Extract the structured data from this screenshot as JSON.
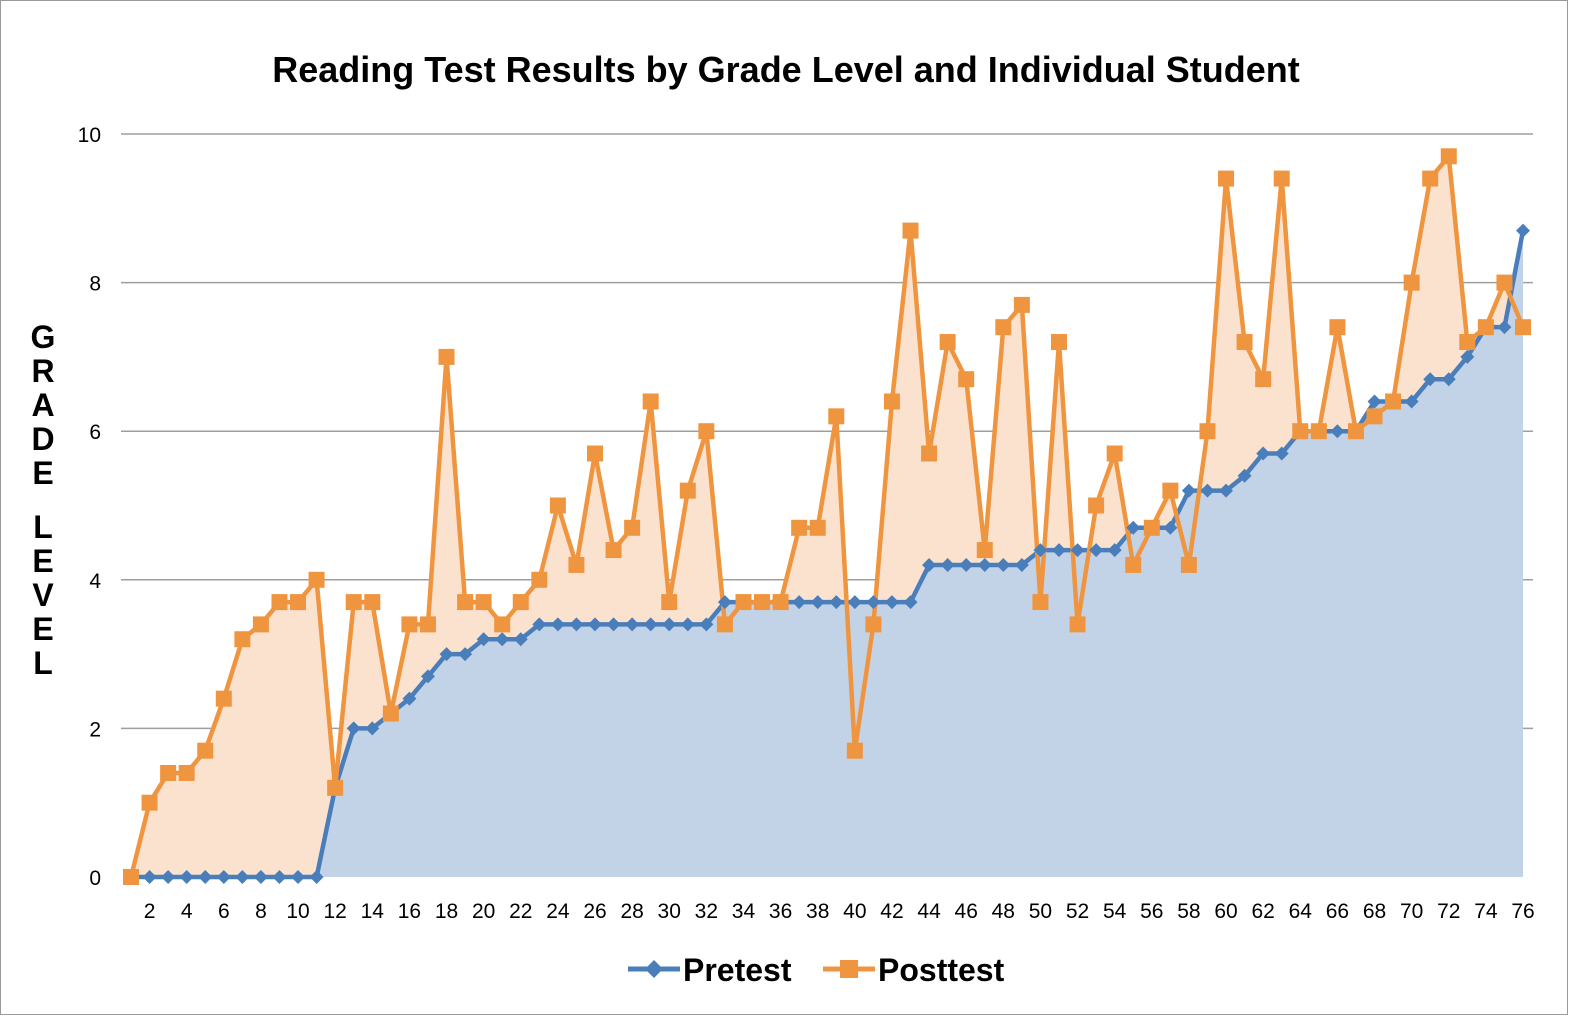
{
  "chart_data": {
    "type": "line",
    "title": "Reading Test Results by Grade Level and Individual Student",
    "xlabel": "",
    "ylabel": "GRADE LEVEL",
    "ylim": [
      0,
      10
    ],
    "yticks": [
      0,
      2,
      4,
      6,
      8,
      10
    ],
    "xlim": [
      1,
      76
    ],
    "xticks": [
      2,
      4,
      6,
      8,
      10,
      12,
      14,
      16,
      18,
      20,
      22,
      24,
      26,
      28,
      30,
      32,
      34,
      36,
      38,
      40,
      42,
      44,
      46,
      48,
      50,
      52,
      54,
      56,
      58,
      60,
      62,
      64,
      66,
      68,
      70,
      72,
      74,
      76
    ],
    "grid": true,
    "legend": "bottom",
    "x": [
      1,
      2,
      3,
      4,
      5,
      6,
      7,
      8,
      9,
      10,
      11,
      12,
      13,
      14,
      15,
      16,
      17,
      18,
      19,
      20,
      21,
      22,
      23,
      24,
      25,
      26,
      27,
      28,
      29,
      30,
      31,
      32,
      33,
      34,
      35,
      36,
      37,
      38,
      39,
      40,
      41,
      42,
      43,
      44,
      45,
      46,
      47,
      48,
      49,
      50,
      51,
      52,
      53,
      54,
      55,
      56,
      57,
      58,
      59,
      60,
      61,
      62,
      63,
      64,
      65,
      66,
      67,
      68,
      69,
      70,
      71,
      72,
      73,
      74,
      75,
      76
    ],
    "series": [
      {
        "name": "Pretest",
        "color": "#4a7ebb",
        "fill": "#c2d3e8",
        "marker": "diamond",
        "values": [
          0,
          0,
          0,
          0,
          0,
          0,
          0,
          0,
          0,
          0,
          0,
          1.2,
          2,
          2,
          2.2,
          2.4,
          2.7,
          3,
          3,
          3.2,
          3.2,
          3.2,
          3.4,
          3.4,
          3.4,
          3.4,
          3.4,
          3.4,
          3.4,
          3.4,
          3.4,
          3.4,
          3.7,
          3.7,
          3.7,
          3.7,
          3.7,
          3.7,
          3.7,
          3.7,
          3.7,
          3.7,
          3.7,
          4.2,
          4.2,
          4.2,
          4.2,
          4.2,
          4.2,
          4.4,
          4.4,
          4.4,
          4.4,
          4.4,
          4.7,
          4.7,
          4.7,
          5.2,
          5.2,
          5.2,
          5.4,
          5.7,
          5.7,
          6,
          6,
          6,
          6,
          6.4,
          6.4,
          6.4,
          6.7,
          6.7,
          7,
          7.4,
          7.4,
          8.7
        ]
      },
      {
        "name": "Posttest",
        "color": "#f0953f",
        "fill": "#fbe2cf",
        "marker": "square",
        "values": [
          0,
          1,
          1.4,
          1.4,
          1.7,
          2.4,
          3.2,
          3.4,
          3.7,
          3.7,
          4,
          1.2,
          3.7,
          3.7,
          2.2,
          3.4,
          3.4,
          7,
          3.7,
          3.7,
          3.4,
          3.7,
          4,
          5,
          4.2,
          5.7,
          4.4,
          4.7,
          6.4,
          3.7,
          5.2,
          6,
          3.4,
          3.7,
          3.7,
          3.7,
          4.7,
          4.7,
          6.2,
          1.7,
          3.4,
          6.4,
          8.7,
          5.7,
          7.2,
          6.7,
          4.4,
          7.4,
          7.7,
          3.7,
          7.2,
          3.4,
          5,
          5.7,
          4.2,
          4.7,
          5.2,
          4.2,
          6,
          9.4,
          7.2,
          6.7,
          9.4,
          6,
          6,
          7.4,
          6,
          6.2,
          6.4,
          8,
          9.4,
          9.7,
          7.2,
          7.4,
          8,
          7.4
        ]
      }
    ]
  }
}
